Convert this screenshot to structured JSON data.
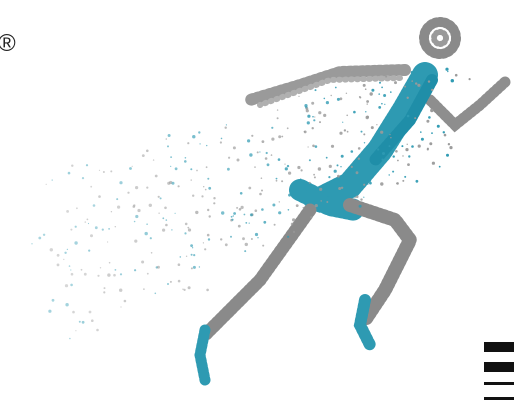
{
  "brand": {
    "mark": "®"
  }
}
